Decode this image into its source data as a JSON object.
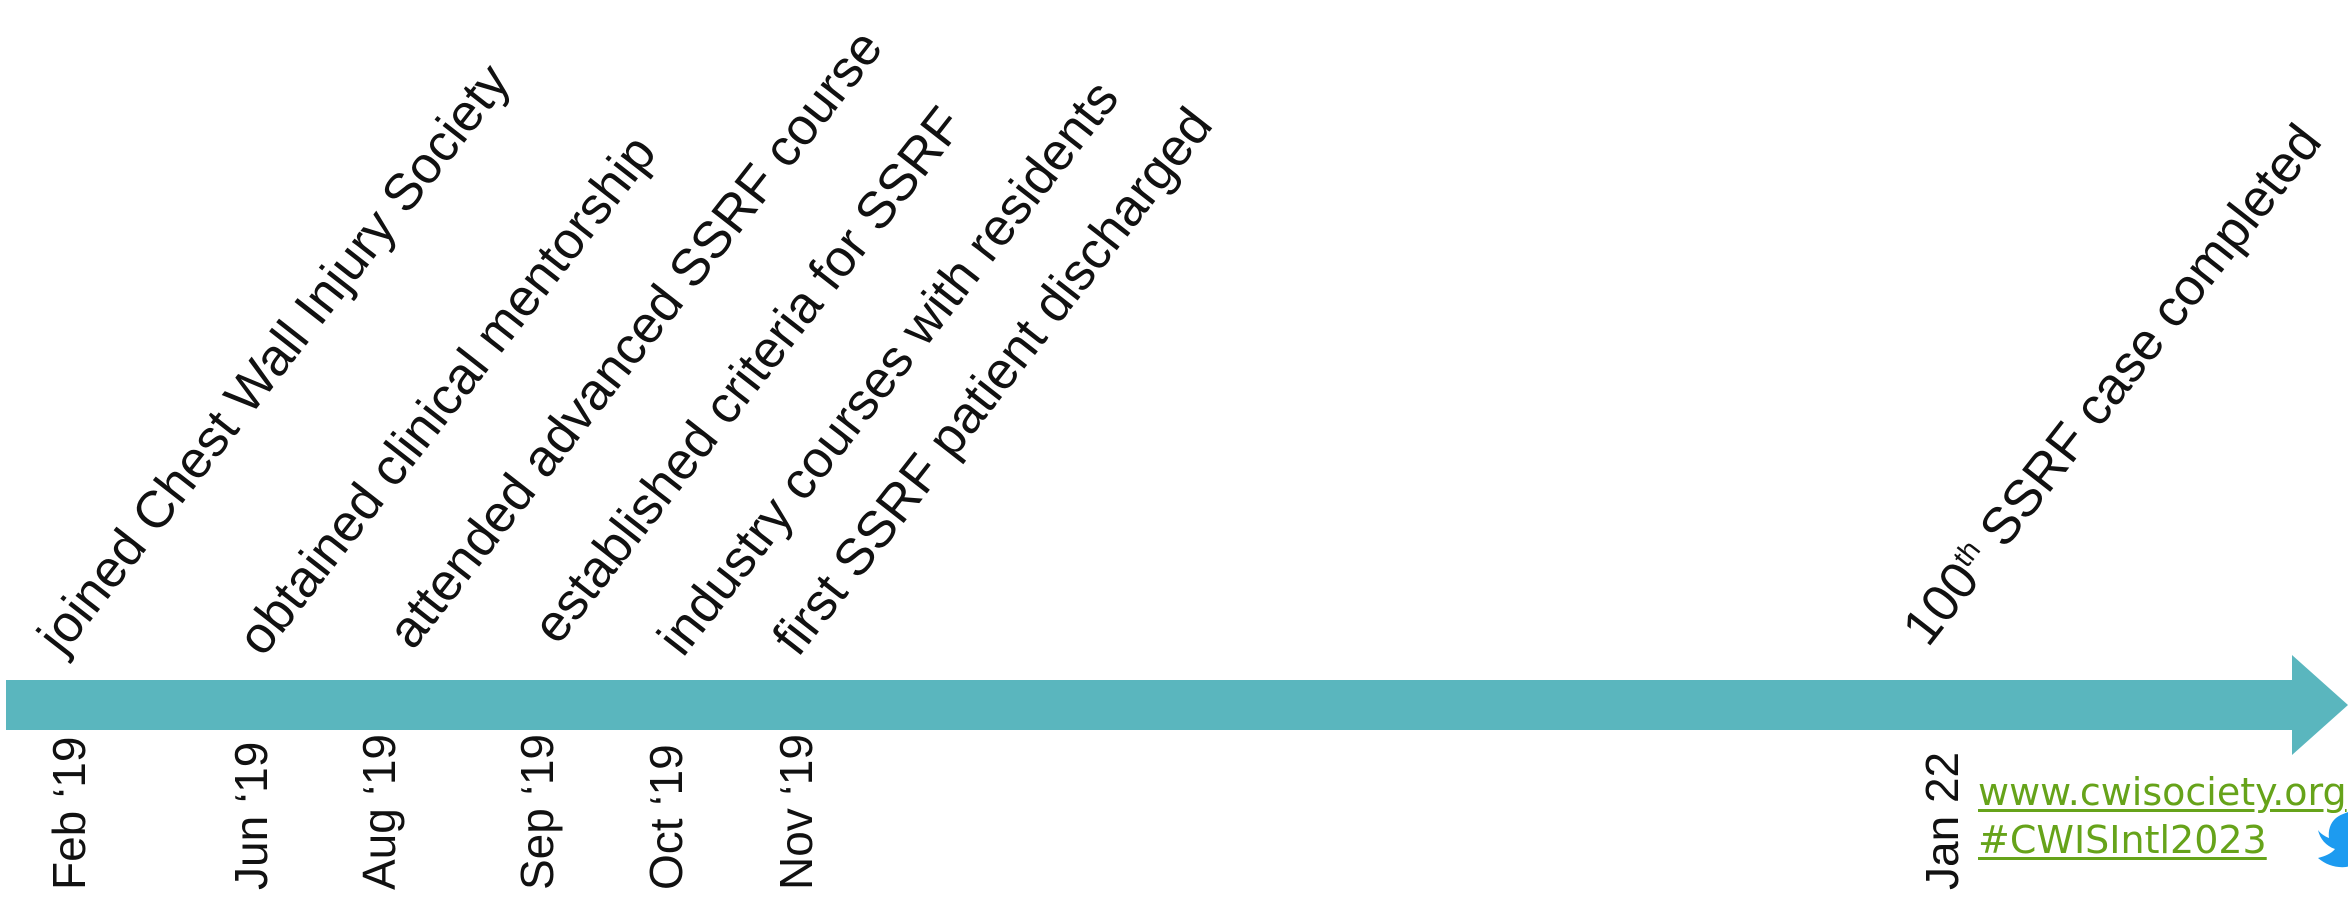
{
  "colors": {
    "arrow": "#5ab6be",
    "link": "#66a31a",
    "twitter": "#1d9bf0",
    "text": "#111111"
  },
  "events": [
    {
      "label": "joined Chest Wall Injury Society",
      "date": "Feb ‘19"
    },
    {
      "label": "obtained clinical mentorship",
      "date": "Jun ‘19"
    },
    {
      "label": "attended advanced SSRF course",
      "date": "Aug ‘19"
    },
    {
      "label": "established criteria for SSRF",
      "date": "Sep ‘19"
    },
    {
      "label": "industry courses with residents",
      "date": "Oct ‘19"
    },
    {
      "label": "first SSRF patient discharged",
      "date": "Nov ‘19"
    }
  ],
  "final_event": {
    "number": "100",
    "superscript": "th",
    "label_rest": " SSRF case completed",
    "date": "Jan 22"
  },
  "links": {
    "website": "www.cwisociety.org",
    "hashtag": "#CWISIntl2023"
  },
  "icons": {
    "arrow": "timeline-arrow",
    "twitter": "twitter-bird-icon"
  }
}
